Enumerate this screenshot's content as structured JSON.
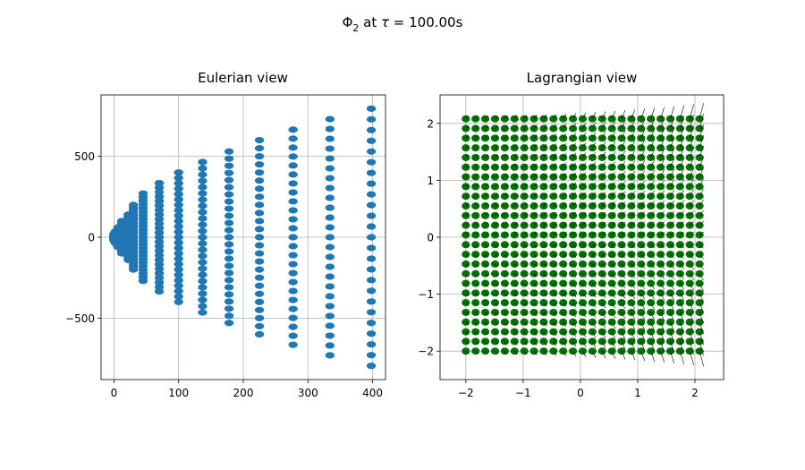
{
  "figure": {
    "suptitle": {
      "main": "Φ",
      "sub": "2",
      "rest": " at ",
      "tau": "τ",
      "value": " = 100.00s"
    }
  },
  "chart_data": [
    {
      "type": "scatter",
      "title": "Eulerian view",
      "xlabel": "",
      "ylabel": "",
      "xlim": [
        -20,
        420
      ],
      "ylim": [
        -880,
        880
      ],
      "xticks": [
        0,
        100,
        200,
        300,
        400
      ],
      "xtick_labels": [
        "0",
        "100",
        "200",
        "300",
        "400"
      ],
      "yticks": [
        -500,
        0,
        500
      ],
      "ytick_labels": [
        "−500",
        "0",
        "500"
      ],
      "grid": true,
      "marker_color": "#1f77b4",
      "columns": [
        {
          "x": 0,
          "y_max": 20
        },
        {
          "x": 2,
          "y_max": 35
        },
        {
          "x": 6,
          "y_max": 60
        },
        {
          "x": 12,
          "y_max": 100
        },
        {
          "x": 22,
          "y_max": 140
        },
        {
          "x": 30,
          "y_max": 200
        },
        {
          "x": 45,
          "y_max": 270
        },
        {
          "x": 70,
          "y_max": 335
        },
        {
          "x": 100,
          "y_max": 400
        },
        {
          "x": 137,
          "y_max": 465
        },
        {
          "x": 178,
          "y_max": 530
        },
        {
          "x": 225,
          "y_max": 600
        },
        {
          "x": 277,
          "y_max": 665
        },
        {
          "x": 334,
          "y_max": 730
        },
        {
          "x": 398,
          "y_max": 795
        }
      ],
      "points_per_column": 25
    },
    {
      "type": "scatter",
      "title": "Lagrangian view",
      "xlabel": "",
      "ylabel": "",
      "xlim": [
        -2.45,
        2.5
      ],
      "ylim": [
        -2.5,
        2.5
      ],
      "xticks": [
        -2,
        -1,
        0,
        1,
        2
      ],
      "xtick_labels": [
        "−2",
        "−1",
        "0",
        "1",
        "2"
      ],
      "yticks": [
        -2,
        -1,
        0,
        1,
        2
      ],
      "ytick_labels": [
        "−2",
        "−1",
        "0",
        "1",
        "2"
      ],
      "grid": true,
      "marker_color": "#007000",
      "arrow_color": "#000000",
      "grid_points": {
        "min": -2,
        "max": 2.08,
        "count": 25
      },
      "has_quiver": true
    }
  ]
}
